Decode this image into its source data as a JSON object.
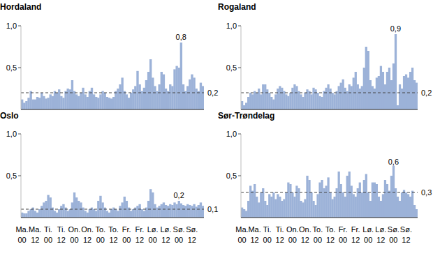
{
  "chart_data": [
    {
      "type": "bar",
      "title": "Hordaland",
      "color": "#9cb2d8",
      "categories": [
        null,
        null,
        null,
        null,
        null,
        null,
        null,
        null,
        null,
        null,
        null,
        null,
        null,
        null,
        null,
        null,
        null,
        null,
        null,
        null,
        null,
        null,
        null,
        null,
        null,
        null,
        null,
        null,
        null,
        null,
        null,
        null,
        null,
        null,
        null,
        null,
        null,
        null,
        null,
        null,
        null,
        null,
        null,
        null,
        null,
        null,
        null,
        null,
        null,
        null,
        null,
        null,
        null,
        null,
        null,
        null,
        null,
        null,
        null,
        null,
        null,
        null,
        null,
        null,
        null,
        null,
        null,
        null,
        null,
        null,
        null,
        null,
        null,
        null,
        null,
        null,
        null,
        null,
        null,
        null,
        null,
        null,
        null,
        null
      ],
      "values": [
        0.12,
        0.08,
        0.1,
        0.14,
        0.22,
        0.12,
        0.12,
        0.15,
        0.14,
        0.2,
        0.16,
        0.13,
        0.14,
        0.18,
        0.16,
        0.22,
        0.2,
        0.24,
        0.16,
        0.14,
        0.22,
        0.25,
        0.24,
        0.35,
        0.22,
        0.18,
        0.16,
        0.2,
        0.26,
        0.18,
        0.15,
        0.22,
        0.26,
        0.18,
        0.15,
        0.14,
        0.18,
        0.22,
        0.2,
        0.15,
        0.14,
        0.13,
        0.15,
        0.22,
        0.25,
        0.3,
        0.38,
        0.22,
        0.18,
        0.14,
        0.2,
        0.24,
        0.28,
        0.46,
        0.3,
        0.22,
        0.26,
        0.35,
        0.45,
        0.6,
        0.38,
        0.28,
        0.22,
        0.3,
        0.45,
        0.42,
        0.25,
        0.22,
        0.3,
        0.28,
        0.48,
        0.52,
        0.5,
        0.8,
        0.3,
        0.22,
        0.28,
        0.36,
        0.42,
        0.38,
        0.25,
        0.22,
        0.32,
        0.28
      ],
      "ylim": [
        0,
        1
      ],
      "yticks": [
        {
          "value": 0.5,
          "label": "0,5"
        },
        {
          "value": 1,
          "label": "1,0"
        }
      ],
      "average": {
        "value": 0.2,
        "label": "0,2"
      },
      "annotations": [
        {
          "index": 73,
          "value": 0.8,
          "label": "0,8"
        }
      ]
    },
    {
      "type": "bar",
      "title": "Rogaland",
      "color": "#9cb2d8",
      "categories": [
        null,
        null,
        null,
        null,
        null,
        null,
        null,
        null,
        null,
        null,
        null,
        null,
        null,
        null,
        null,
        null,
        null,
        null,
        null,
        null,
        null,
        null,
        null,
        null,
        null,
        null,
        null,
        null,
        null,
        null,
        null,
        null,
        null,
        null,
        null,
        null,
        null,
        null,
        null,
        null,
        null,
        null,
        null,
        null,
        null,
        null,
        null,
        null,
        null,
        null,
        null,
        null,
        null,
        null,
        null,
        null,
        null,
        null,
        null,
        null,
        null,
        null,
        null,
        null,
        null,
        null,
        null,
        null,
        null,
        null,
        null,
        null,
        null,
        null,
        null,
        null,
        null,
        null,
        null,
        null,
        null,
        null,
        null,
        null
      ],
      "values": [
        0.1,
        0.05,
        0.08,
        0.15,
        0.2,
        0.18,
        0.22,
        0.2,
        0.25,
        0.18,
        0.3,
        0.3,
        0.24,
        0.2,
        0.15,
        0.12,
        0.18,
        0.25,
        0.28,
        0.26,
        0.22,
        0.18,
        0.16,
        0.2,
        0.26,
        0.3,
        0.28,
        0.22,
        0.18,
        0.15,
        0.2,
        0.24,
        0.22,
        0.18,
        0.26,
        0.24,
        0.2,
        0.16,
        0.15,
        0.22,
        0.26,
        0.3,
        0.25,
        0.2,
        0.18,
        0.22,
        0.28,
        0.32,
        0.36,
        0.26,
        0.22,
        0.3,
        0.28,
        0.38,
        0.45,
        0.3,
        0.25,
        0.28,
        0.5,
        0.75,
        0.7,
        0.35,
        0.28,
        0.25,
        0.38,
        0.4,
        0.52,
        0.45,
        0.3,
        0.45,
        0.5,
        0.35,
        0.55,
        0.9,
        0.05,
        0.3,
        0.25,
        0.4,
        0.42,
        0.38,
        0.45,
        0.5,
        0.35,
        0.32
      ],
      "ylim": [
        0,
        1
      ],
      "yticks": [
        {
          "value": 0.5,
          "label": "0,5"
        },
        {
          "value": 1,
          "label": "1,0"
        }
      ],
      "average": {
        "value": 0.2,
        "label": "0,2"
      },
      "annotations": [
        {
          "index": 73,
          "value": 0.9,
          "label": "0,9"
        }
      ]
    },
    {
      "type": "bar",
      "title": "Oslo",
      "color": "#9cb2d8",
      "categories": [
        "Ma. 00",
        null,
        null,
        null,
        null,
        null,
        "Ma. 12",
        null,
        null,
        null,
        null,
        null,
        "Ti. 00",
        null,
        null,
        null,
        null,
        null,
        "Ti. 12",
        null,
        null,
        null,
        null,
        null,
        "On. 00",
        null,
        null,
        null,
        null,
        null,
        "On. 12",
        null,
        null,
        null,
        null,
        null,
        "To. 00",
        null,
        null,
        null,
        null,
        null,
        "To. 12",
        null,
        null,
        null,
        null,
        null,
        "Fr. 00",
        null,
        null,
        null,
        null,
        null,
        "Fr. 12",
        null,
        null,
        null,
        null,
        null,
        "Lø. 00",
        null,
        null,
        null,
        null,
        null,
        "Lø. 12",
        null,
        null,
        null,
        null,
        null,
        "Sø. 00",
        null,
        null,
        null,
        null,
        null,
        "Sø. 12",
        null,
        null,
        null,
        null,
        null
      ],
      "values": [
        0.06,
        0.05,
        0.05,
        0.08,
        0.1,
        0.12,
        0.08,
        0.06,
        0.1,
        0.14,
        0.18,
        0.2,
        0.27,
        0.24,
        0.12,
        0.08,
        0.06,
        0.1,
        0.14,
        0.16,
        0.12,
        0.08,
        0.1,
        0.18,
        0.3,
        0.24,
        0.2,
        0.18,
        0.12,
        0.08,
        0.06,
        0.1,
        0.12,
        0.1,
        0.08,
        0.2,
        0.26,
        0.18,
        0.12,
        0.08,
        0.06,
        0.1,
        0.12,
        0.1,
        0.08,
        0.14,
        0.18,
        0.25,
        0.2,
        0.12,
        0.08,
        0.1,
        0.12,
        0.14,
        0.16,
        0.1,
        0.08,
        0.12,
        0.2,
        0.34,
        0.3,
        0.16,
        0.12,
        0.14,
        0.16,
        0.18,
        0.15,
        0.14,
        0.16,
        0.15,
        0.18,
        0.16,
        0.2,
        0.17,
        0.15,
        0.14,
        0.16,
        0.15,
        0.14,
        0.16,
        0.13,
        0.15,
        0.18,
        0.14
      ],
      "ylim": [
        0,
        1
      ],
      "yticks": [
        {
          "value": 0.5,
          "label": "0,5"
        },
        {
          "value": 1,
          "label": "1,0"
        }
      ],
      "average": {
        "value": 0.1,
        "label": "0,1"
      },
      "annotations": [
        {
          "index": 72,
          "value": 0.2,
          "label": "0,2"
        }
      ]
    },
    {
      "type": "bar",
      "title": "Sør-Trøndelag",
      "color": "#9cb2d8",
      "categories": [
        "Ma. 00",
        null,
        null,
        null,
        null,
        null,
        "Ma. 12",
        null,
        null,
        null,
        null,
        null,
        "Ti. 00",
        null,
        null,
        null,
        null,
        null,
        "Ti. 12",
        null,
        null,
        null,
        null,
        null,
        "On. 00",
        null,
        null,
        null,
        null,
        null,
        "On. 12",
        null,
        null,
        null,
        null,
        null,
        "To. 00",
        null,
        null,
        null,
        null,
        null,
        "To. 12",
        null,
        null,
        null,
        null,
        null,
        "Fr. 00",
        null,
        null,
        null,
        null,
        null,
        "Fr. 12",
        null,
        null,
        null,
        null,
        null,
        "Lø. 00",
        null,
        null,
        null,
        null,
        null,
        "Lø. 12",
        null,
        null,
        null,
        null,
        null,
        "Sø. 00",
        null,
        null,
        null,
        null,
        null,
        "Sø. 12",
        null,
        null,
        null,
        null,
        null
      ],
      "values": [
        0.12,
        0.1,
        0.08,
        0.2,
        0.38,
        0.32,
        0.4,
        0.25,
        0.18,
        0.3,
        0.35,
        0.2,
        0.15,
        0.28,
        0.25,
        0.3,
        0.22,
        0.28,
        0.25,
        0.2,
        0.22,
        0.3,
        0.42,
        0.4,
        0.3,
        0.25,
        0.38,
        0.35,
        0.2,
        0.18,
        0.22,
        0.5,
        0.45,
        0.3,
        0.2,
        0.15,
        0.28,
        0.42,
        0.45,
        0.35,
        0.38,
        0.48,
        0.3,
        0.22,
        0.25,
        0.35,
        0.55,
        0.4,
        0.3,
        0.25,
        0.5,
        0.55,
        0.38,
        0.28,
        0.25,
        0.35,
        0.42,
        0.3,
        0.45,
        0.52,
        0.3,
        0.2,
        0.42,
        0.42,
        0.4,
        0.25,
        0.2,
        0.28,
        0.45,
        0.4,
        0.32,
        0.5,
        0.62,
        0.35,
        0.25,
        0.2,
        0.3,
        0.33,
        0.3,
        0.28,
        0.25,
        0.32,
        0.15,
        0.1
      ],
      "ylim": [
        0,
        1
      ],
      "yticks": [
        {
          "value": 0.5,
          "label": "0,5"
        },
        {
          "value": 1,
          "label": "1,0"
        }
      ],
      "average": {
        "value": 0.3,
        "label": "0,3"
      },
      "annotations": [
        {
          "index": 72,
          "value": 0.6,
          "label": "0,6"
        }
      ]
    }
  ]
}
